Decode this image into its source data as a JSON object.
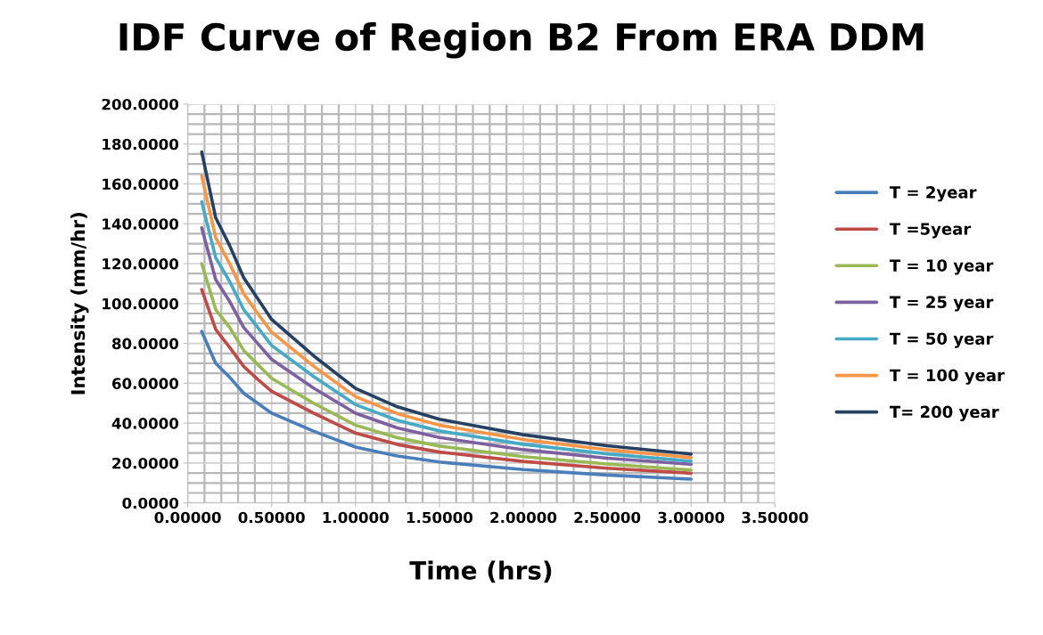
{
  "chart_data": {
    "type": "line",
    "title": "IDF Curve of Region B2 From ERA DDM",
    "xlabel": "Time (hrs)",
    "ylabel": "Intensity (mm/hr)",
    "x": [
      0.0833,
      0.1667,
      0.25,
      0.3333,
      0.4167,
      0.5,
      0.75,
      1.0,
      1.25,
      1.5,
      2.0,
      2.5,
      3.0
    ],
    "series": [
      {
        "name": "T = 2year",
        "color": "#4a7ebb",
        "values": [
          86,
          70,
          63,
          55,
          50,
          45,
          36,
          28,
          23.5,
          20.5,
          16.7,
          14,
          11.9
        ]
      },
      {
        "name": "T =5year",
        "color": "#be4b48",
        "values": [
          107,
          87,
          78,
          68.5,
          62,
          56,
          45,
          35,
          29.3,
          25.5,
          20.8,
          17.4,
          14.9
        ]
      },
      {
        "name": "T = 10 year",
        "color": "#98b954",
        "values": [
          120,
          97,
          88,
          76.5,
          69.5,
          62.5,
          50,
          39,
          32.7,
          28.5,
          23.2,
          19.5,
          16.5
        ]
      },
      {
        "name": "T = 25 year",
        "color": "#7d60a0",
        "values": [
          138,
          112,
          101,
          88,
          80,
          72,
          57.6,
          45,
          37.6,
          32.8,
          26.7,
          22.4,
          19.4
        ]
      },
      {
        "name": "T = 50 year",
        "color": "#46aac5",
        "values": [
          151,
          123,
          111,
          97,
          88,
          79,
          63.4,
          49.3,
          41.4,
          36.1,
          29.4,
          24.6,
          20.9
        ]
      },
      {
        "name": "T = 100 year",
        "color": "#f79646",
        "values": [
          164,
          133,
          120,
          105,
          95,
          85.7,
          68.6,
          53.3,
          44.8,
          39,
          31.8,
          26.7,
          22.7
        ]
      },
      {
        "name": "T= 200 year",
        "color": "#254061",
        "values": [
          176,
          143,
          129,
          113,
          102.5,
          92,
          73.8,
          57.4,
          48.2,
          42,
          34.2,
          28.7,
          24.5
        ]
      }
    ],
    "xlim": [
      0,
      3.5
    ],
    "xticks": [
      {
        "value": 0,
        "label": "0.00000"
      },
      {
        "value": 0.5,
        "label": "0.50000"
      },
      {
        "value": 1,
        "label": "1.00000"
      },
      {
        "value": 1.5,
        "label": "1.50000"
      },
      {
        "value": 2,
        "label": "2.00000"
      },
      {
        "value": 2.5,
        "label": "2.50000"
      },
      {
        "value": 3,
        "label": "3.00000"
      },
      {
        "value": 3.5,
        "label": "3.50000"
      }
    ],
    "ylim": [
      0,
      200
    ],
    "yticks": [
      {
        "value": 0,
        "label": "0.0000"
      },
      {
        "value": 20,
        "label": "20.0000"
      },
      {
        "value": 40,
        "label": "40.0000"
      },
      {
        "value": 60,
        "label": "60.0000"
      },
      {
        "value": 80,
        "label": "80.0000"
      },
      {
        "value": 100,
        "label": "100.0000"
      },
      {
        "value": 120,
        "label": "120.0000"
      },
      {
        "value": 140,
        "label": "140.0000"
      },
      {
        "value": 160,
        "label": "160.0000"
      },
      {
        "value": 180,
        "label": "180.0000"
      },
      {
        "value": 200,
        "label": "200.0000"
      }
    ],
    "grid": true,
    "legend": "right",
    "marker": "none",
    "line_style": "solid"
  }
}
